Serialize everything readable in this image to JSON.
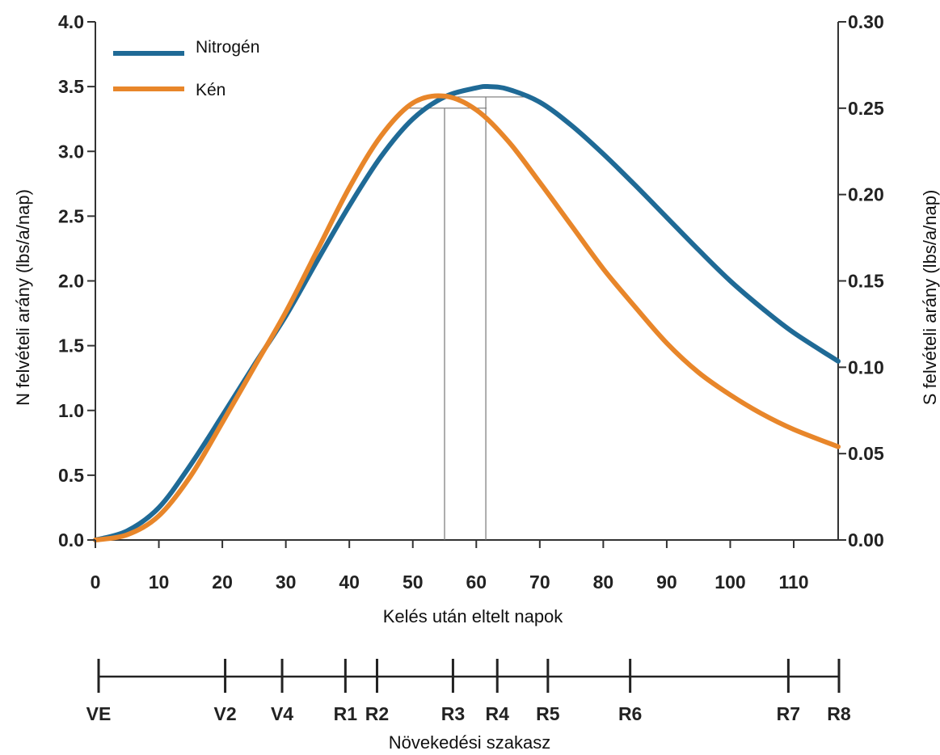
{
  "chart_data": {
    "type": "line",
    "xlabel": "Kelés után eltelt napok",
    "ylabel_left": "N felvételi  arány  (lbs/a/nap)",
    "ylabel_right": "S felvételi  arány  (lbs/a/nap)",
    "xlim": [
      0,
      117
    ],
    "ylim_left": [
      0,
      4.0
    ],
    "ylim_right": [
      0,
      0.3
    ],
    "x_ticks": [
      "0",
      "10",
      "20",
      "30",
      "40",
      "50",
      "60",
      "70",
      "80",
      "90",
      "100",
      "110"
    ],
    "y_ticks_left": [
      "0.0",
      "0.5",
      "1.0",
      "1.5",
      "2.0",
      "2.5",
      "3.0",
      "3.5",
      "4.0"
    ],
    "y_ticks_right": [
      "0.00",
      "0.05",
      "0.10",
      "0.15",
      "0.20",
      "0.25",
      "0.30"
    ],
    "legend_position": "top-left",
    "series": [
      {
        "name": "Nitrogén",
        "axis": "left",
        "color": "#1f6a96",
        "x": [
          0,
          5,
          10,
          15,
          20,
          25,
          30,
          35,
          40,
          45,
          50,
          55,
          60,
          62,
          65,
          70,
          75,
          80,
          85,
          90,
          95,
          100,
          105,
          110,
          117
        ],
        "y": [
          0.0,
          0.07,
          0.25,
          0.58,
          0.96,
          1.35,
          1.73,
          2.16,
          2.58,
          2.96,
          3.25,
          3.42,
          3.49,
          3.5,
          3.48,
          3.38,
          3.2,
          2.98,
          2.74,
          2.49,
          2.24,
          2.0,
          1.79,
          1.6,
          1.38
        ]
      },
      {
        "name": "Kén",
        "axis": "right",
        "color": "#e8862a",
        "x": [
          0,
          5,
          10,
          15,
          20,
          25,
          30,
          35,
          40,
          45,
          50,
          55,
          60,
          65,
          70,
          75,
          80,
          85,
          90,
          95,
          100,
          105,
          110,
          117
        ],
        "y": [
          0.0,
          0.003,
          0.014,
          0.037,
          0.068,
          0.1,
          0.132,
          0.168,
          0.204,
          0.234,
          0.253,
          0.257,
          0.249,
          0.231,
          0.207,
          0.182,
          0.157,
          0.135,
          0.114,
          0.097,
          0.084,
          0.073,
          0.064,
          0.054
        ]
      }
    ],
    "reference_lines": [
      {
        "series": "Kén",
        "x": 55,
        "y": 0.25
      },
      {
        "series": "Nitrogén",
        "x": 61.5,
        "y": 3.42
      }
    ],
    "growth_stage_axis": {
      "label": "Növekedési  szakasz",
      "stages": [
        {
          "label": "VE",
          "day": 0
        },
        {
          "label": "V2",
          "day": 20
        },
        {
          "label": "V4",
          "day": 29
        },
        {
          "label": "R1",
          "day": 39
        },
        {
          "label": "R2",
          "day": 44
        },
        {
          "label": "R3",
          "day": 56
        },
        {
          "label": "R4",
          "day": 63
        },
        {
          "label": "R5",
          "day": 71
        },
        {
          "label": "R6",
          "day": 84
        },
        {
          "label": "R7",
          "day": 109
        },
        {
          "label": "R8",
          "day": 117
        }
      ]
    }
  }
}
